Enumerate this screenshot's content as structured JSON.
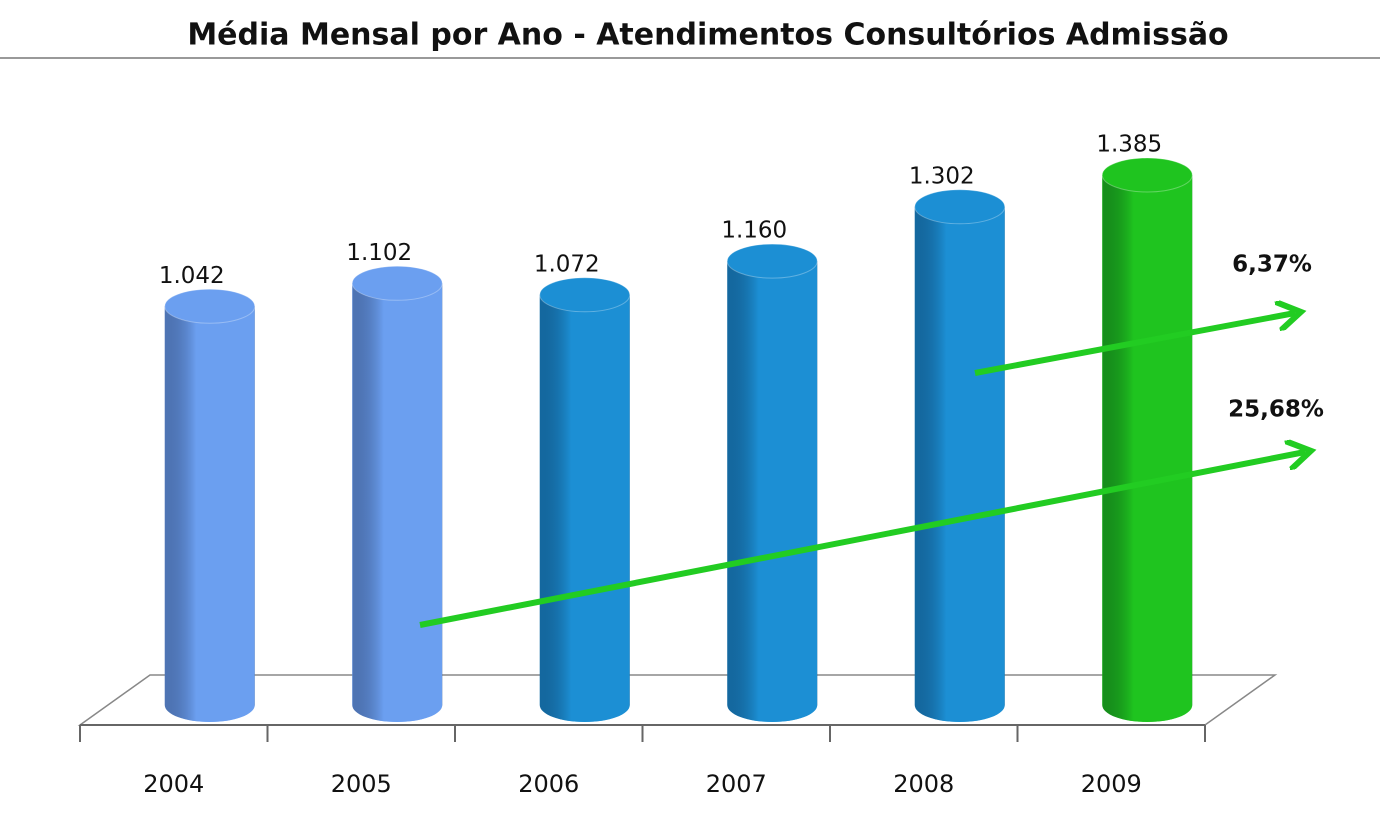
{
  "chart_data": {
    "type": "bar3d",
    "title": "Média Mensal por Ano - Atendimentos Consultórios Admissão",
    "categories": [
      "2004",
      "2005",
      "2006",
      "2007",
      "2008",
      "2009"
    ],
    "values": [
      1042,
      1102,
      1072,
      1160,
      1302,
      1385
    ],
    "value_labels": [
      "1.042",
      "1.102",
      "1.072",
      "1.160",
      "1.302",
      "1.385"
    ],
    "colors": [
      "#6b9ff0",
      "#6b9ff0",
      "#1c8fd4",
      "#1c8fd4",
      "#1c8fd4",
      "#1fc41f"
    ],
    "annotations": [
      "6,37%",
      "25,68%"
    ]
  }
}
